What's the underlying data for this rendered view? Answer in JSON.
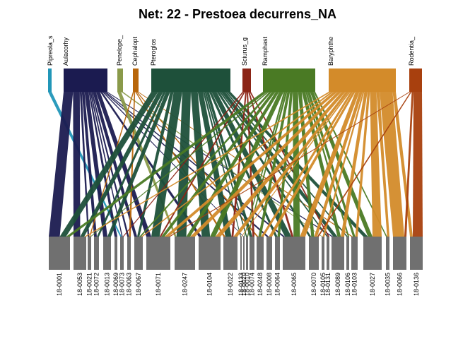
{
  "title": "Net: 22 - Prestoea decurrens_NA",
  "chart_data": {
    "type": "bipartite-network",
    "title": "Net: 22 - Prestoea decurrens_NA",
    "higher": [
      {
        "label": "Pipreola_s",
        "color": "#2196b8"
      },
      {
        "label": "Aulacorhy",
        "color": "#1b1b50"
      },
      {
        "label": "Penelope_",
        "color": "#8a9a4a"
      },
      {
        "label": "Cephalopt",
        "color": "#b8660b"
      },
      {
        "label": "Pteroglos",
        "color": "#1e503a"
      },
      {
        "label": "Sciurus_g",
        "color": "#8b2416"
      },
      {
        "label": "Ramphast",
        "color": "#4a7a24"
      },
      {
        "label": "Baryphthe",
        "color": "#d38b2a"
      },
      {
        "label": "Rodentia_",
        "color": "#a8400e"
      }
    ],
    "lower": [
      "18-0001",
      "18-0053",
      "18-0021",
      "18-0072",
      "18-0013",
      "18-0069",
      "18-0073",
      "18-0063",
      "18-0067",
      "18-0071",
      "18-0247",
      "18-0104",
      "18-0022",
      "18-0133",
      "18-0020",
      "18-0010",
      "18-0074",
      "18-0248",
      "18-0008",
      "18-0064",
      "18-0065",
      "18-0070",
      "18-0105",
      "18-0131",
      "18-0089",
      "18-0106",
      "18-0103",
      "18-0027",
      "18-0035",
      "18-0066",
      "18-0136"
    ],
    "lower_color": "#707070"
  }
}
